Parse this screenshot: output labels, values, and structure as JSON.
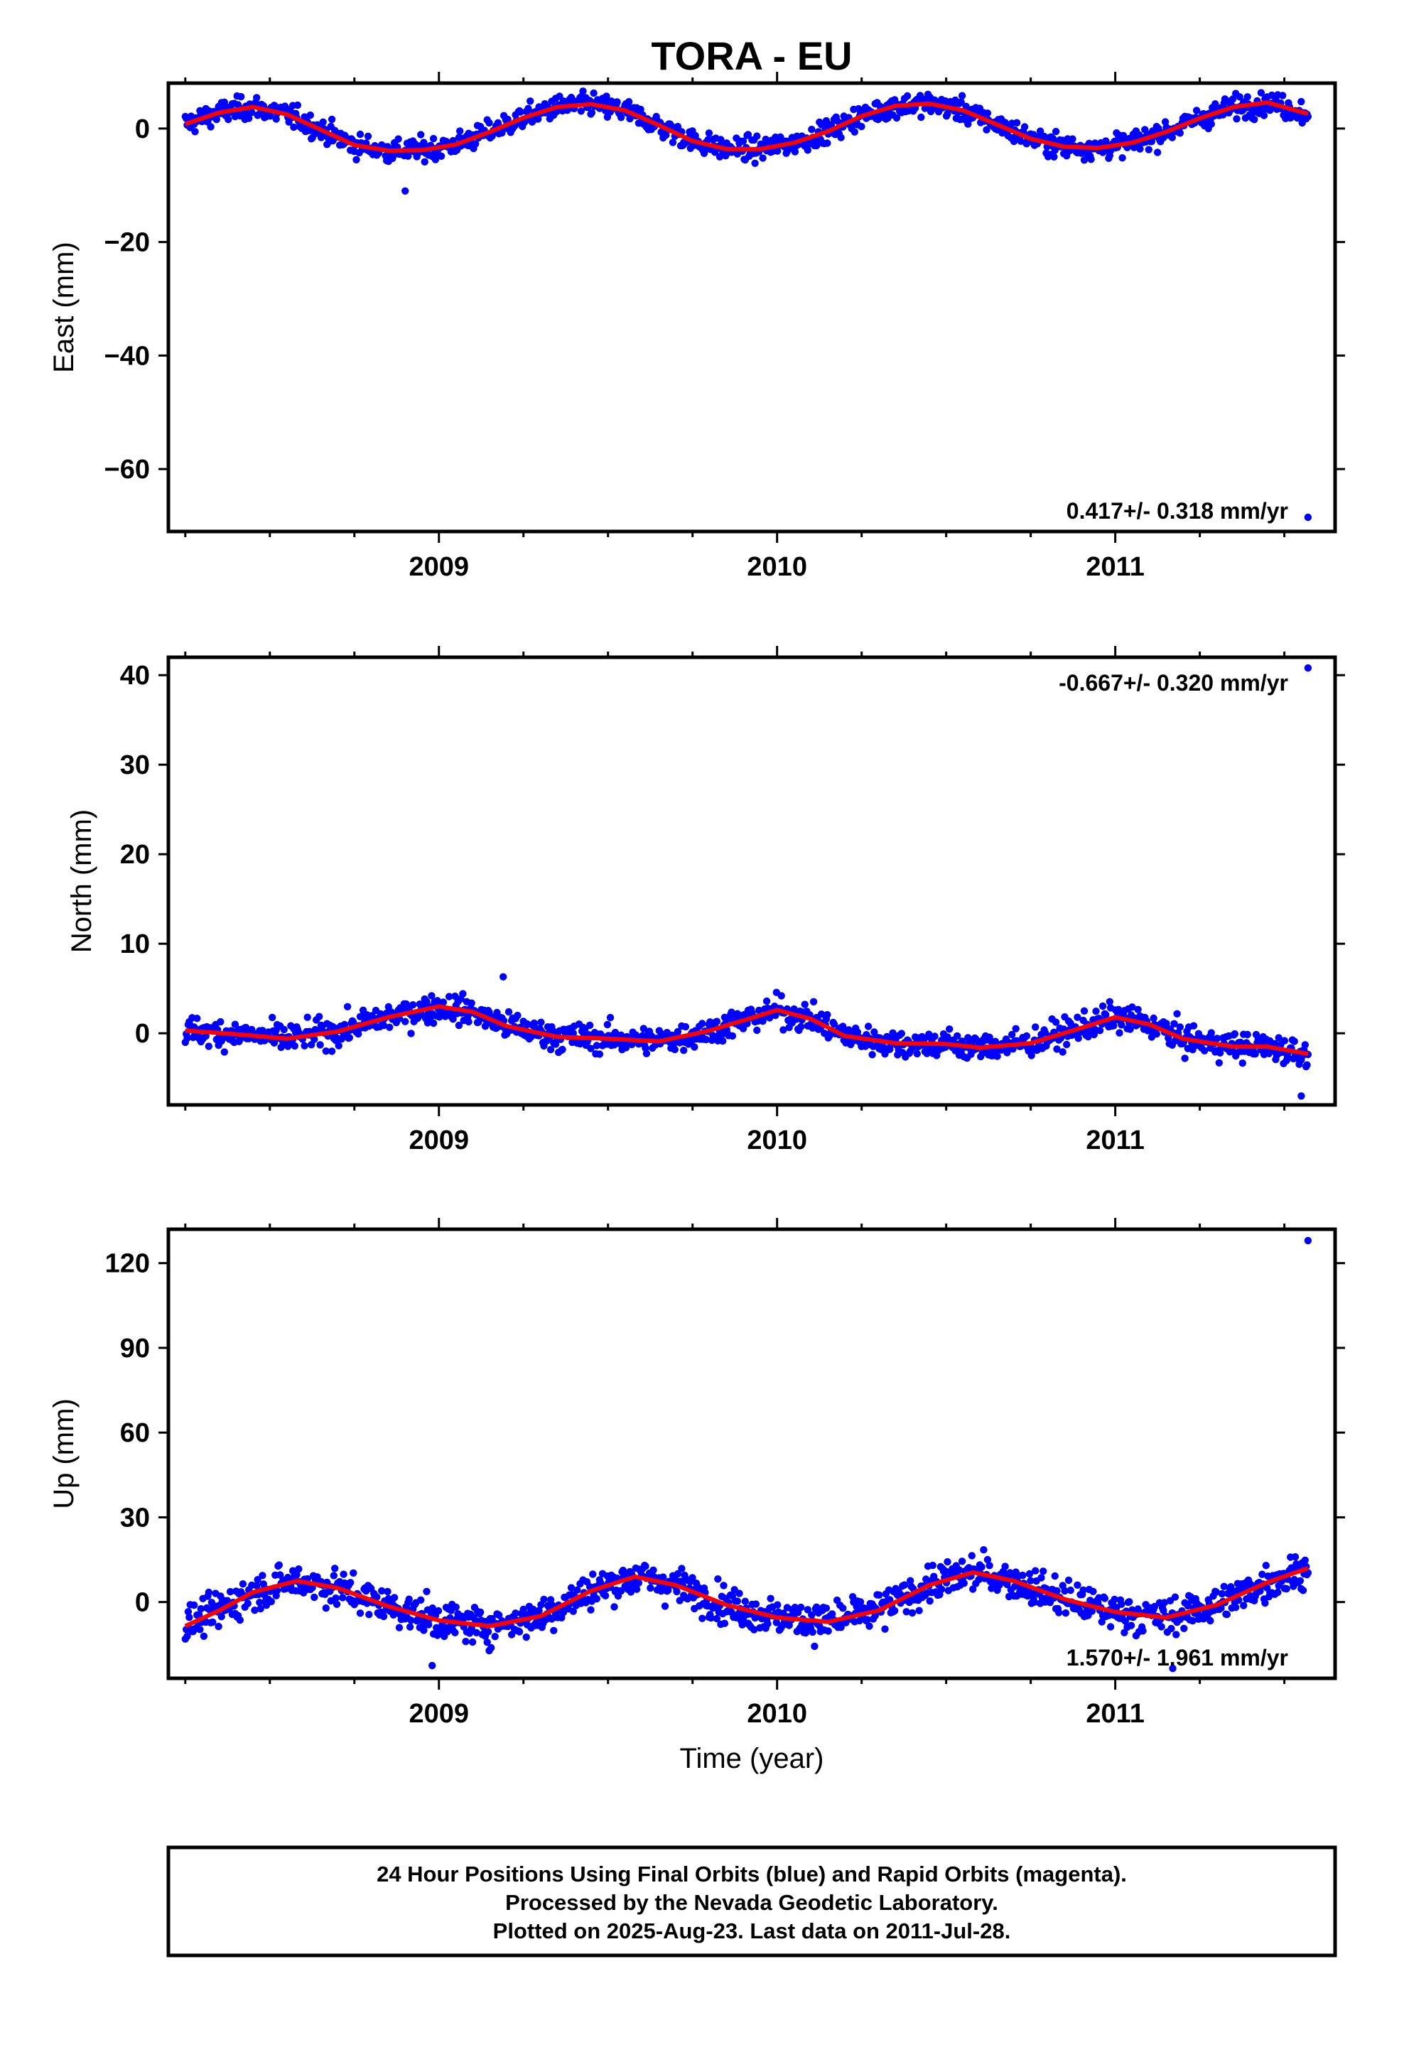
{
  "title": "TORA - EU",
  "xlabel": "Time (year)",
  "colors": {
    "points": "#0000ff",
    "fit": "#ff0000",
    "frame": "#000000"
  },
  "footer": {
    "line1": "24 Hour Positions Using Final Orbits (blue) and Rapid Orbits (magenta).",
    "line2": "Processed by the Nevada Geodetic Laboratory.",
    "line3": "Plotted on 2025-Aug-23. Last data on 2011-Jul-28."
  },
  "chart_data": [
    {
      "type": "scatter",
      "ylabel": "East (mm)",
      "rate_text": "0.417+/- 0.318 mm/yr",
      "xlim": [
        2008.2,
        2011.65
      ],
      "ylim": [
        -71,
        8
      ],
      "x_ticks": [
        2009,
        2010,
        2011
      ],
      "y_ticks": [
        0,
        -20,
        -40,
        -60
      ],
      "fit": {
        "x": [
          2008.25,
          2008.35,
          2008.45,
          2008.55,
          2008.65,
          2008.75,
          2008.85,
          2008.95,
          2009.05,
          2009.15,
          2009.25,
          2009.35,
          2009.45,
          2009.55,
          2009.65,
          2009.75,
          2009.85,
          2009.95,
          2010.05,
          2010.15,
          2010.25,
          2010.35,
          2010.45,
          2010.55,
          2010.65,
          2010.75,
          2010.85,
          2010.95,
          2011.05,
          2011.15,
          2011.25,
          2011.35,
          2011.45,
          2011.57
        ],
        "y": [
          0.8,
          2.8,
          3.8,
          2.5,
          -0.2,
          -2.9,
          -3.9,
          -3.8,
          -2.8,
          -0.6,
          1.9,
          3.8,
          4.3,
          3.2,
          0.6,
          -2.2,
          -3.6,
          -3.6,
          -2.5,
          -0.5,
          2.2,
          4.0,
          4.4,
          3.2,
          0.7,
          -1.8,
          -3.2,
          -3.4,
          -2.5,
          -0.6,
          1.8,
          3.8,
          4.6,
          2.6
        ]
      },
      "scatter": {
        "noise": 1.4,
        "outliers": [
          [
            2008.9,
            -11.0
          ],
          [
            2011.57,
            -68.5
          ]
        ]
      }
    },
    {
      "type": "scatter",
      "ylabel": "North (mm)",
      "rate_text": "-0.667+/- 0.320 mm/yr",
      "xlim": [
        2008.2,
        2011.65
      ],
      "ylim": [
        -8,
        42
      ],
      "x_ticks": [
        2009,
        2010,
        2011
      ],
      "y_ticks": [
        0,
        10,
        20,
        30,
        40
      ],
      "fit": {
        "x": [
          2008.25,
          2008.4,
          2008.55,
          2008.7,
          2008.85,
          2009.0,
          2009.1,
          2009.2,
          2009.35,
          2009.5,
          2009.65,
          2009.8,
          2009.95,
          2010.0,
          2010.1,
          2010.2,
          2010.35,
          2010.5,
          2010.6,
          2010.75,
          2010.9,
          2011.0,
          2011.1,
          2011.2,
          2011.35,
          2011.45,
          2011.57
        ],
        "y": [
          0.3,
          -0.1,
          -0.6,
          0.2,
          1.8,
          3.0,
          2.4,
          0.8,
          -0.4,
          -0.6,
          -0.9,
          0.3,
          2.0,
          2.6,
          1.6,
          -0.3,
          -1.1,
          -1.2,
          -1.6,
          -1.1,
          0.6,
          1.8,
          1.0,
          -0.6,
          -1.5,
          -1.5,
          -2.3
        ]
      },
      "scatter": {
        "noise": 1.1,
        "outliers": [
          [
            2009.19,
            6.3
          ],
          [
            2011.57,
            40.8
          ],
          [
            2011.55,
            -7.0
          ]
        ]
      }
    },
    {
      "type": "scatter",
      "ylabel": "Up (mm)",
      "rate_text": "1.570+/- 1.961 mm/yr",
      "xlim": [
        2008.2,
        2011.65
      ],
      "ylim": [
        -27,
        132
      ],
      "x_ticks": [
        2009,
        2010,
        2011
      ],
      "y_ticks": [
        0,
        30,
        60,
        90,
        120
      ],
      "fit": {
        "x": [
          2008.25,
          2008.35,
          2008.45,
          2008.58,
          2008.7,
          2008.85,
          2009.0,
          2009.15,
          2009.3,
          2009.45,
          2009.58,
          2009.7,
          2009.85,
          2010.0,
          2010.15,
          2010.3,
          2010.45,
          2010.58,
          2010.7,
          2010.85,
          2011.0,
          2011.15,
          2011.3,
          2011.45,
          2011.57
        ],
        "y": [
          -8.5,
          -3.0,
          3.5,
          7.5,
          5.0,
          -1.5,
          -6.5,
          -8.5,
          -5.0,
          4.0,
          9.0,
          6.0,
          -1.0,
          -5.5,
          -7.0,
          -3.0,
          6.0,
          10.5,
          7.5,
          1.0,
          -3.5,
          -5.5,
          -1.0,
          7.0,
          12.0
        ]
      },
      "scatter": {
        "noise": 4.5,
        "outliers": [
          [
            2011.57,
            128.0
          ],
          [
            2008.98,
            -22.5
          ],
          [
            2011.17,
            -23.5
          ]
        ]
      }
    }
  ]
}
